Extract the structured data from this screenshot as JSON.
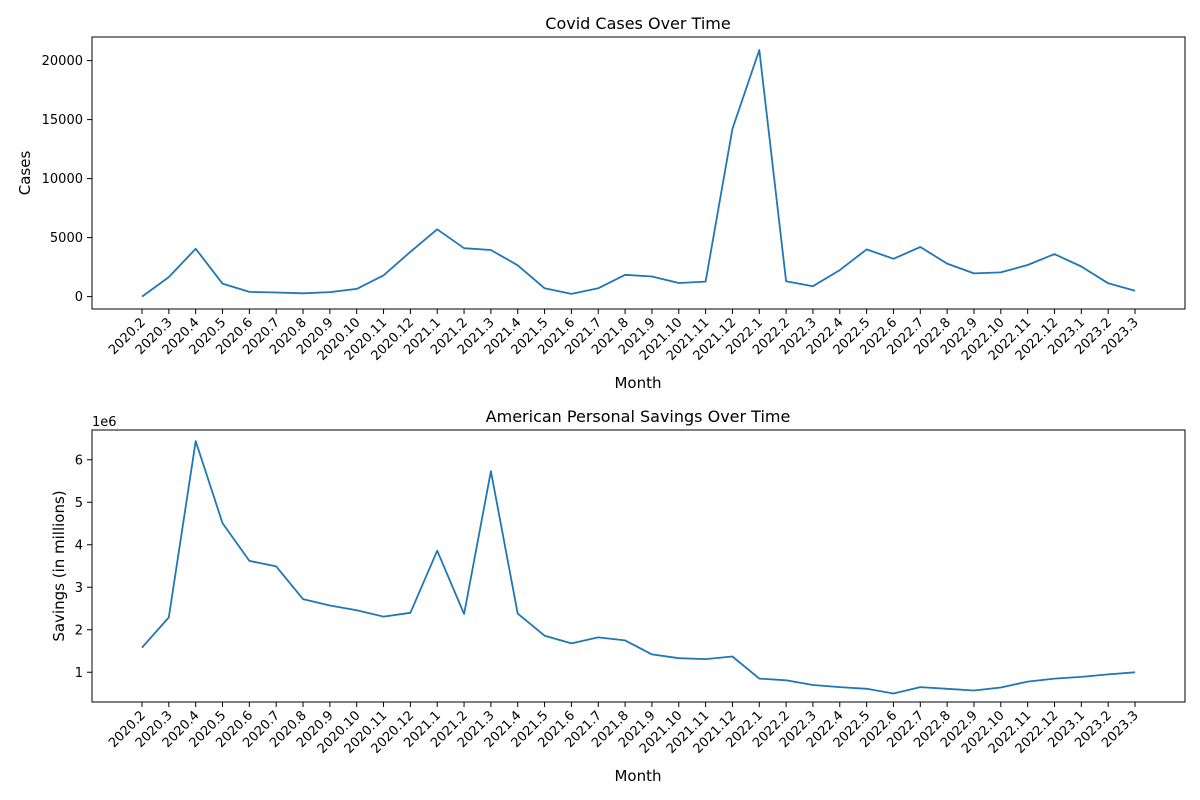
{
  "colors": {
    "line": "#1f77b4"
  },
  "months": [
    "2020.2",
    "2020.3",
    "2020.4",
    "2020.5",
    "2020.6",
    "2020.7",
    "2020.8",
    "2020.9",
    "2020.10",
    "2020.11",
    "2020.12",
    "2021.1",
    "2021.2",
    "2021.3",
    "2021.4",
    "2021.5",
    "2021.6",
    "2021.7",
    "2021.8",
    "2021.9",
    "2021.10",
    "2021.11",
    "2021.12",
    "2022.1",
    "2022.2",
    "2022.3",
    "2022.4",
    "2022.5",
    "2022.6",
    "2022.7",
    "2022.8",
    "2022.9",
    "2022.10",
    "2022.11",
    "2022.12",
    "2023.1",
    "2023.2",
    "2023.3"
  ],
  "chart_data": [
    {
      "type": "line",
      "title": "Covid Cases Over Time",
      "xlabel": "Month",
      "ylabel": "Cases",
      "ylim": [
        -1050,
        22000
      ],
      "yticks": [
        0,
        5000,
        10000,
        15000,
        20000
      ],
      "ytick_labels": [
        "0",
        "5000",
        "10000",
        "15000",
        "20000"
      ],
      "offset_label": "",
      "grid": false,
      "series": [
        {
          "values": [
            0,
            1650,
            4050,
            1100,
            400,
            350,
            280,
            380,
            650,
            1800,
            3800,
            5700,
            4100,
            3950,
            2650,
            700,
            230,
            700,
            1850,
            1700,
            1150,
            1270,
            14200,
            20900,
            1300,
            880,
            2250,
            4000,
            3200,
            4200,
            2800,
            1970,
            2050,
            2680,
            3600,
            2550,
            1130,
            500
          ]
        }
      ]
    },
    {
      "type": "line",
      "title": "American Personal Savings Over Time",
      "xlabel": "Month",
      "ylabel": "Savings (in millions)",
      "ylim": [
        300000,
        6700000
      ],
      "yticks": [
        1000000,
        2000000,
        3000000,
        4000000,
        5000000,
        6000000
      ],
      "ytick_labels": [
        "1",
        "2",
        "3",
        "4",
        "5",
        "6"
      ],
      "offset_label": "1e6",
      "grid": false,
      "series": [
        {
          "values": [
            1580000,
            2290000,
            6440000,
            4510000,
            3620000,
            3490000,
            2720000,
            2570000,
            2460000,
            2310000,
            2400000,
            3860000,
            2370000,
            5730000,
            2380000,
            1860000,
            1680000,
            1820000,
            1750000,
            1420000,
            1330000,
            1310000,
            1370000,
            850000,
            810000,
            700000,
            650000,
            610000,
            500000,
            650000,
            610000,
            570000,
            640000,
            780000,
            850000,
            890000,
            950000,
            1000000
          ]
        }
      ]
    }
  ]
}
